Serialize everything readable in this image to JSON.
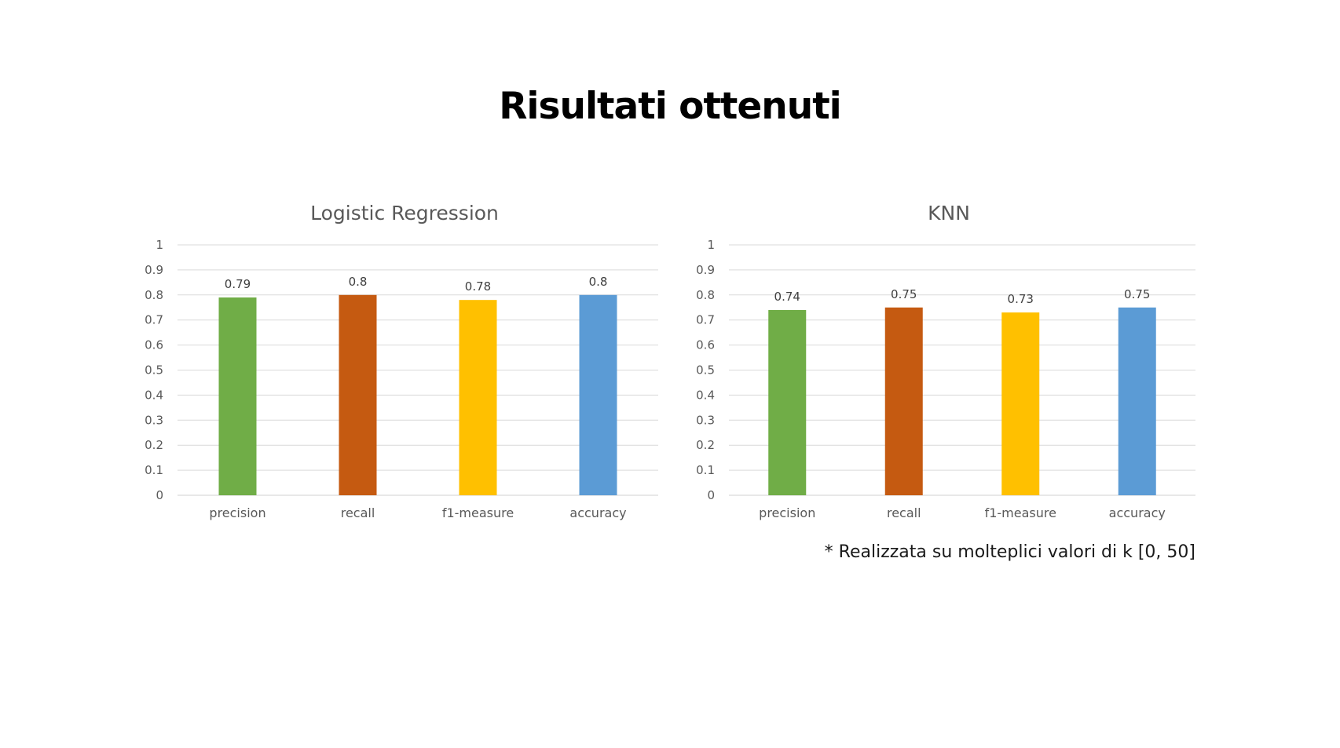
{
  "slide": {
    "title": "Risultati ottenuti",
    "note": "* Realizzata su molteplici valori di k [0, 50]"
  },
  "chart_data": [
    {
      "type": "bar",
      "title": "Logistic Regression",
      "categories": [
        "precision",
        "recall",
        "f1-measure",
        "accuracy"
      ],
      "values": [
        0.79,
        0.8,
        0.78,
        0.8
      ],
      "value_labels": [
        "0.79",
        "0.8",
        "0.78",
        "0.8"
      ],
      "colors": [
        "#70AD47",
        "#C55A11",
        "#FFC000",
        "#5B9BD5"
      ],
      "ylim": [
        0,
        1
      ],
      "yticks": [
        "0",
        "0.1",
        "0.2",
        "0.3",
        "0.4",
        "0.5",
        "0.6",
        "0.7",
        "0.8",
        "0.9",
        "1"
      ],
      "grid": true,
      "xlabel": "",
      "ylabel": ""
    },
    {
      "type": "bar",
      "title": "KNN",
      "categories": [
        "precision",
        "recall",
        "f1-measure",
        "accuracy"
      ],
      "values": [
        0.74,
        0.75,
        0.73,
        0.75
      ],
      "value_labels": [
        "0.74",
        "0.75",
        "0.73",
        "0.75"
      ],
      "colors": [
        "#70AD47",
        "#C55A11",
        "#FFC000",
        "#5B9BD5"
      ],
      "ylim": [
        0,
        1
      ],
      "yticks": [
        "0",
        "0.1",
        "0.2",
        "0.3",
        "0.4",
        "0.5",
        "0.6",
        "0.7",
        "0.8",
        "0.9",
        "1"
      ],
      "grid": true,
      "xlabel": "",
      "ylabel": ""
    }
  ]
}
